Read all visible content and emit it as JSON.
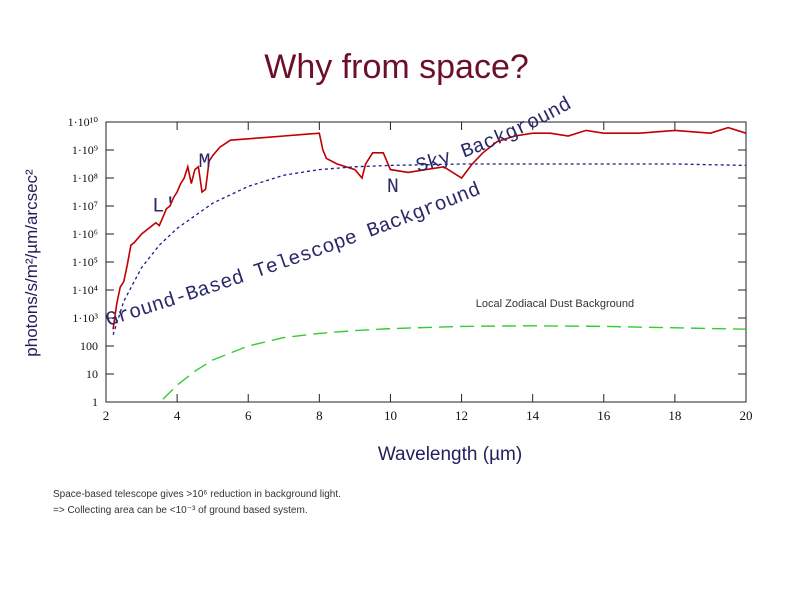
{
  "slide": {
    "title": "Why from space?",
    "ylabel": "photons/s/m²/µm/arcsec²",
    "xlabel": "Wavelength (µm)",
    "note_line1": "Space-based telescope gives >10⁶ reduction in background light.",
    "note_line2": "=> Collecting area can be <10⁻³ of ground based system."
  },
  "chart_data": {
    "type": "line",
    "xlim": [
      2,
      20
    ],
    "ylim_log10": [
      0,
      10
    ],
    "y_scale": "log",
    "x_ticks": [
      2,
      4,
      6,
      8,
      10,
      12,
      14,
      16,
      18,
      20
    ],
    "y_ticks": [
      {
        "exp": 10,
        "label": "1·10¹⁰"
      },
      {
        "exp": 9,
        "label": "1·10⁹"
      },
      {
        "exp": 8,
        "label": "1·10⁸"
      },
      {
        "exp": 7,
        "label": "1·10⁷"
      },
      {
        "exp": 6,
        "label": "1·10⁶"
      },
      {
        "exp": 5,
        "label": "1·10⁵"
      },
      {
        "exp": 4,
        "label": "1·10⁴"
      },
      {
        "exp": 3,
        "label": "1·10³"
      },
      {
        "exp": 2,
        "label": "100"
      },
      {
        "exp": 1,
        "label": "10"
      },
      {
        "exp": 0,
        "label": "1"
      }
    ],
    "series": [
      {
        "color": "#c00000",
        "style": "solid",
        "points": [
          [
            2.2,
            2.6
          ],
          [
            2.3,
            3.5
          ],
          [
            2.4,
            4.1
          ],
          [
            2.5,
            4.3
          ],
          [
            2.6,
            4.9
          ],
          [
            2.7,
            5.6
          ],
          [
            2.8,
            5.7
          ],
          [
            3.0,
            6.0
          ],
          [
            3.2,
            6.2
          ],
          [
            3.4,
            6.4
          ],
          [
            3.5,
            6.3
          ],
          [
            3.6,
            6.6
          ],
          [
            3.7,
            6.9
          ],
          [
            3.8,
            7.0
          ],
          [
            3.9,
            7.3
          ],
          [
            4.0,
            7.5
          ],
          [
            4.1,
            7.8
          ],
          [
            4.2,
            8.0
          ],
          [
            4.3,
            8.4
          ],
          [
            4.4,
            7.8
          ],
          [
            4.5,
            8.3
          ],
          [
            4.6,
            8.4
          ],
          [
            4.7,
            7.5
          ],
          [
            4.8,
            7.6
          ],
          [
            4.9,
            8.6
          ],
          [
            5.0,
            8.8
          ],
          [
            5.2,
            9.1
          ],
          [
            5.5,
            9.35
          ],
          [
            6.0,
            9.4
          ],
          [
            6.5,
            9.45
          ],
          [
            7.0,
            9.5
          ],
          [
            7.5,
            9.55
          ],
          [
            8.0,
            9.6
          ],
          [
            8.1,
            9.0
          ],
          [
            8.2,
            8.7
          ],
          [
            8.5,
            8.5
          ],
          [
            9.0,
            8.3
          ],
          [
            9.2,
            8.0
          ],
          [
            9.3,
            8.5
          ],
          [
            9.5,
            8.9
          ],
          [
            9.8,
            8.9
          ],
          [
            10.0,
            8.3
          ],
          [
            10.5,
            8.2
          ],
          [
            11.0,
            8.3
          ],
          [
            11.5,
            8.4
          ],
          [
            12.0,
            8.0
          ],
          [
            12.3,
            8.5
          ],
          [
            12.6,
            8.9
          ],
          [
            13.0,
            9.3
          ],
          [
            13.5,
            9.5
          ],
          [
            14.0,
            9.6
          ],
          [
            14.5,
            9.6
          ],
          [
            15.0,
            9.5
          ],
          [
            15.5,
            9.7
          ],
          [
            16.0,
            9.6
          ],
          [
            17.0,
            9.6
          ],
          [
            18.0,
            9.7
          ],
          [
            19.0,
            9.6
          ],
          [
            19.5,
            9.8
          ],
          [
            20.0,
            9.6
          ]
        ]
      },
      {
        "color": "#1a1a8c",
        "style": "dotted",
        "points": [
          [
            2.2,
            2.4
          ],
          [
            2.5,
            3.6
          ],
          [
            3.0,
            4.8
          ],
          [
            3.5,
            5.6
          ],
          [
            4.0,
            6.2
          ],
          [
            5.0,
            7.1
          ],
          [
            6.0,
            7.7
          ],
          [
            7.0,
            8.1
          ],
          [
            8.0,
            8.3
          ],
          [
            9.0,
            8.4
          ],
          [
            10.0,
            8.45
          ],
          [
            12.0,
            8.5
          ],
          [
            14.0,
            8.5
          ],
          [
            16.0,
            8.5
          ],
          [
            18.0,
            8.5
          ],
          [
            20.0,
            8.45
          ]
        ]
      },
      {
        "color": "#33cc33",
        "style": "dashed",
        "points": [
          [
            3.6,
            0.1
          ],
          [
            4.0,
            0.6
          ],
          [
            4.5,
            1.1
          ],
          [
            5.0,
            1.5
          ],
          [
            6.0,
            2.0
          ],
          [
            7.0,
            2.3
          ],
          [
            8.0,
            2.45
          ],
          [
            9.0,
            2.55
          ],
          [
            10.0,
            2.62
          ],
          [
            12.0,
            2.7
          ],
          [
            14.0,
            2.72
          ],
          [
            16.0,
            2.7
          ],
          [
            18.0,
            2.65
          ],
          [
            20.0,
            2.6
          ]
        ]
      }
    ],
    "annotations": [
      {
        "text": "M",
        "x": 4.6,
        "logy": 8.4
      },
      {
        "text": "L'",
        "x": 3.3,
        "logy": 6.8
      },
      {
        "text": "N",
        "x": 9.9,
        "logy": 7.5
      },
      {
        "text": "Sky Background",
        "x": 9.8,
        "logy": 8.7
      },
      {
        "text": "Ground-Based Telescope Background",
        "x": 2.0,
        "logy": 3.2
      },
      {
        "text": "Local Zodiacal Dust Background",
        "x": 12.4,
        "logy": 3.4
      }
    ]
  }
}
